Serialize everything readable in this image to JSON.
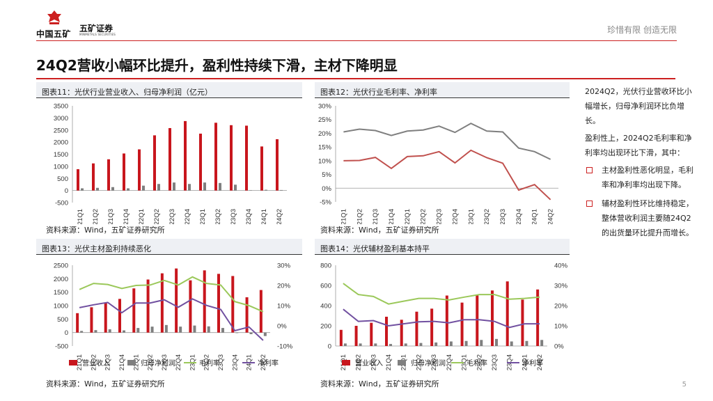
{
  "header": {
    "logo_cn": "中国五矿",
    "brand": "五矿证券",
    "brand_en": "MINMETALS SECURITIES",
    "slogan": "珍惜有限 创造无限",
    "title": "24Q2营收小幅环比提升，盈利性持续下滑，主材下降明显"
  },
  "colors": {
    "red": "#c8161d",
    "gray": "#7f7f7f",
    "green": "#9bc85a",
    "purple": "#7150a0",
    "darkgray": "#595959",
    "accent": "#cc1f1f"
  },
  "sidebar": {
    "p1": "2024Q2，光伏行业营收环比小幅增长，归母净利润环比负增长。",
    "p2": "盈利性上，2024Q2毛利率和净利率均出现环比下滑，其中：",
    "bullets": [
      "主材盈利性恶化明显，毛利率和净利率均出现下降。",
      "辅材盈利性环比维持稳定，整体营收利润主要随24Q2的出货量环比提升而增长。"
    ]
  },
  "page_number": "5",
  "chart_data": [
    {
      "id": "chart11",
      "type": "bar",
      "title": "图表11：光伏行业营业收入、归母净利润（亿元）",
      "source": "资料来源：Wind，五矿证券研究所",
      "categories": [
        "21Q1",
        "21Q2",
        "21Q3",
        "21Q4",
        "22Q1",
        "22Q2",
        "22Q3",
        "22Q4",
        "23Q1",
        "23Q2",
        "23Q3",
        "23Q4",
        "24Q1",
        "24Q2"
      ],
      "ylim": [
        -500,
        3500
      ],
      "yticks": [
        "-500",
        "0",
        "500",
        "1000",
        "1500",
        "2000",
        "2500",
        "3000",
        "3500"
      ],
      "series": [
        {
          "name": "营业收入",
          "color": "#c8161d",
          "values": [
            880,
            1120,
            1290,
            1530,
            1700,
            2280,
            2580,
            2870,
            2350,
            2800,
            2700,
            2680,
            1820,
            2120
          ]
        },
        {
          "name": "归母净利润",
          "color": "#7f7f7f",
          "values": [
            90,
            110,
            140,
            90,
            200,
            270,
            330,
            270,
            330,
            310,
            240,
            10,
            30,
            20
          ]
        }
      ]
    },
    {
      "id": "chart12",
      "type": "line",
      "title": "图表12：光伏行业毛利率、净利率",
      "source": "资料来源：Wind，五矿证券研究所",
      "categories": [
        "21Q1",
        "21Q2",
        "21Q3",
        "21Q4",
        "22Q1",
        "22Q2",
        "22Q3",
        "22Q4",
        "23Q1",
        "23Q2",
        "23Q3",
        "23Q4",
        "24Q1",
        "24Q2"
      ],
      "ylim": [
        -5,
        30
      ],
      "yticks": [
        "-5%",
        "0%",
        "5%",
        "10%",
        "15%",
        "20%",
        "25%",
        "30%"
      ],
      "series": [
        {
          "name": "毛利率",
          "color": "#7f7f7f",
          "values": [
            20.5,
            21.5,
            21.0,
            19.2,
            20.8,
            21.2,
            22.6,
            20.3,
            23.6,
            20.8,
            20.5,
            14.6,
            13.3,
            10.5
          ]
        },
        {
          "name": "净利率",
          "color": "#c0504d",
          "values": [
            10.0,
            10.1,
            11.2,
            7.2,
            11.5,
            11.8,
            13.3,
            9.2,
            13.8,
            11.1,
            9.1,
            -0.7,
            1.3,
            -4.2
          ]
        }
      ]
    },
    {
      "id": "chart13",
      "type": "bar",
      "title": "图表13：光伏主材盈利持续恶化",
      "source": "资料来源：Wind，五矿证券研究所",
      "categories": [
        "21Q1",
        "21Q2",
        "21Q3",
        "21Q4",
        "22Q1",
        "22Q2",
        "22Q3",
        "22Q4",
        "23Q1",
        "23Q2",
        "23Q3",
        "23Q4",
        "24Q1",
        "24Q2"
      ],
      "ylim": [
        -500,
        2500
      ],
      "yticks": [
        "-500",
        "0",
        "500",
        "1000",
        "1500",
        "2000",
        "2500"
      ],
      "y2lim": [
        -10,
        30
      ],
      "y2ticks": [
        "-10%",
        "0%",
        "10%",
        "20%",
        "30%"
      ],
      "legend": [
        "营业收入",
        "归母净利润",
        "毛利率",
        "净利率"
      ],
      "series": [
        {
          "name": "营业收入",
          "color": "#c8161d",
          "axis": "left",
          "values": [
            720,
            940,
            1100,
            1250,
            1640,
            1970,
            2200,
            2380,
            1940,
            2310,
            2180,
            2100,
            1310,
            1580
          ]
        },
        {
          "name": "归母净利润",
          "color": "#7f7f7f",
          "axis": "left",
          "values": [
            60,
            90,
            120,
            80,
            170,
            220,
            280,
            220,
            260,
            230,
            170,
            -20,
            -60,
            -130
          ]
        },
        {
          "name": "毛利率",
          "color": "#9bc85a",
          "axis": "right",
          "values": [
            18,
            21,
            20.5,
            18.5,
            20,
            20.2,
            22.5,
            20.2,
            24.2,
            21,
            20.2,
            12,
            10,
            7
          ]
        },
        {
          "name": "净利率",
          "color": "#7150a0",
          "axis": "right",
          "values": [
            9,
            10.4,
            11.6,
            6.5,
            11.3,
            11.3,
            12.9,
            9.2,
            13.3,
            10.1,
            8.1,
            -2.4,
            -0.6,
            -7.2
          ]
        }
      ]
    },
    {
      "id": "chart14",
      "type": "bar",
      "title": "图表14：光伏辅材盈利基本持平",
      "source": "资料来源：Wind，五矿证券研究所",
      "categories": [
        "21Q1",
        "21Q2",
        "21Q3",
        "21Q4",
        "22Q1",
        "22Q2",
        "22Q3",
        "22Q4",
        "23Q1",
        "23Q2",
        "23Q3",
        "23Q4",
        "24Q1",
        "24Q2"
      ],
      "ylim": [
        0,
        800
      ],
      "yticks": [
        "0",
        "200",
        "400",
        "600",
        "800"
      ],
      "y2lim": [
        0,
        40
      ],
      "y2ticks": [
        "0%",
        "10%",
        "20%",
        "30%",
        "40%"
      ],
      "legend": [
        "营业收入",
        "归母净利润",
        "毛利率",
        "净利率"
      ],
      "series": [
        {
          "name": "营业收入",
          "color": "#c8161d",
          "axis": "left",
          "values": [
            160,
            200,
            230,
            290,
            260,
            340,
            370,
            500,
            430,
            500,
            550,
            640,
            460,
            560
          ]
        },
        {
          "name": "归母净利润",
          "color": "#7f7f7f",
          "axis": "left",
          "values": [
            25,
            25,
            25,
            20,
            25,
            30,
            35,
            45,
            50,
            60,
            70,
            45,
            50,
            60
          ]
        },
        {
          "name": "毛利率",
          "color": "#9bc85a",
          "axis": "right",
          "values": [
            31,
            25.5,
            24.5,
            20.8,
            22.2,
            23.6,
            23.6,
            22.8,
            24.2,
            25.5,
            25.5,
            23.2,
            23.6,
            24.2
          ]
        },
        {
          "name": "净利率",
          "color": "#7150a0",
          "axis": "right",
          "values": [
            18.2,
            12.2,
            12.6,
            10,
            11,
            12,
            12.2,
            11.5,
            13,
            13,
            12.2,
            9.2,
            11,
            11
          ]
        }
      ]
    }
  ]
}
